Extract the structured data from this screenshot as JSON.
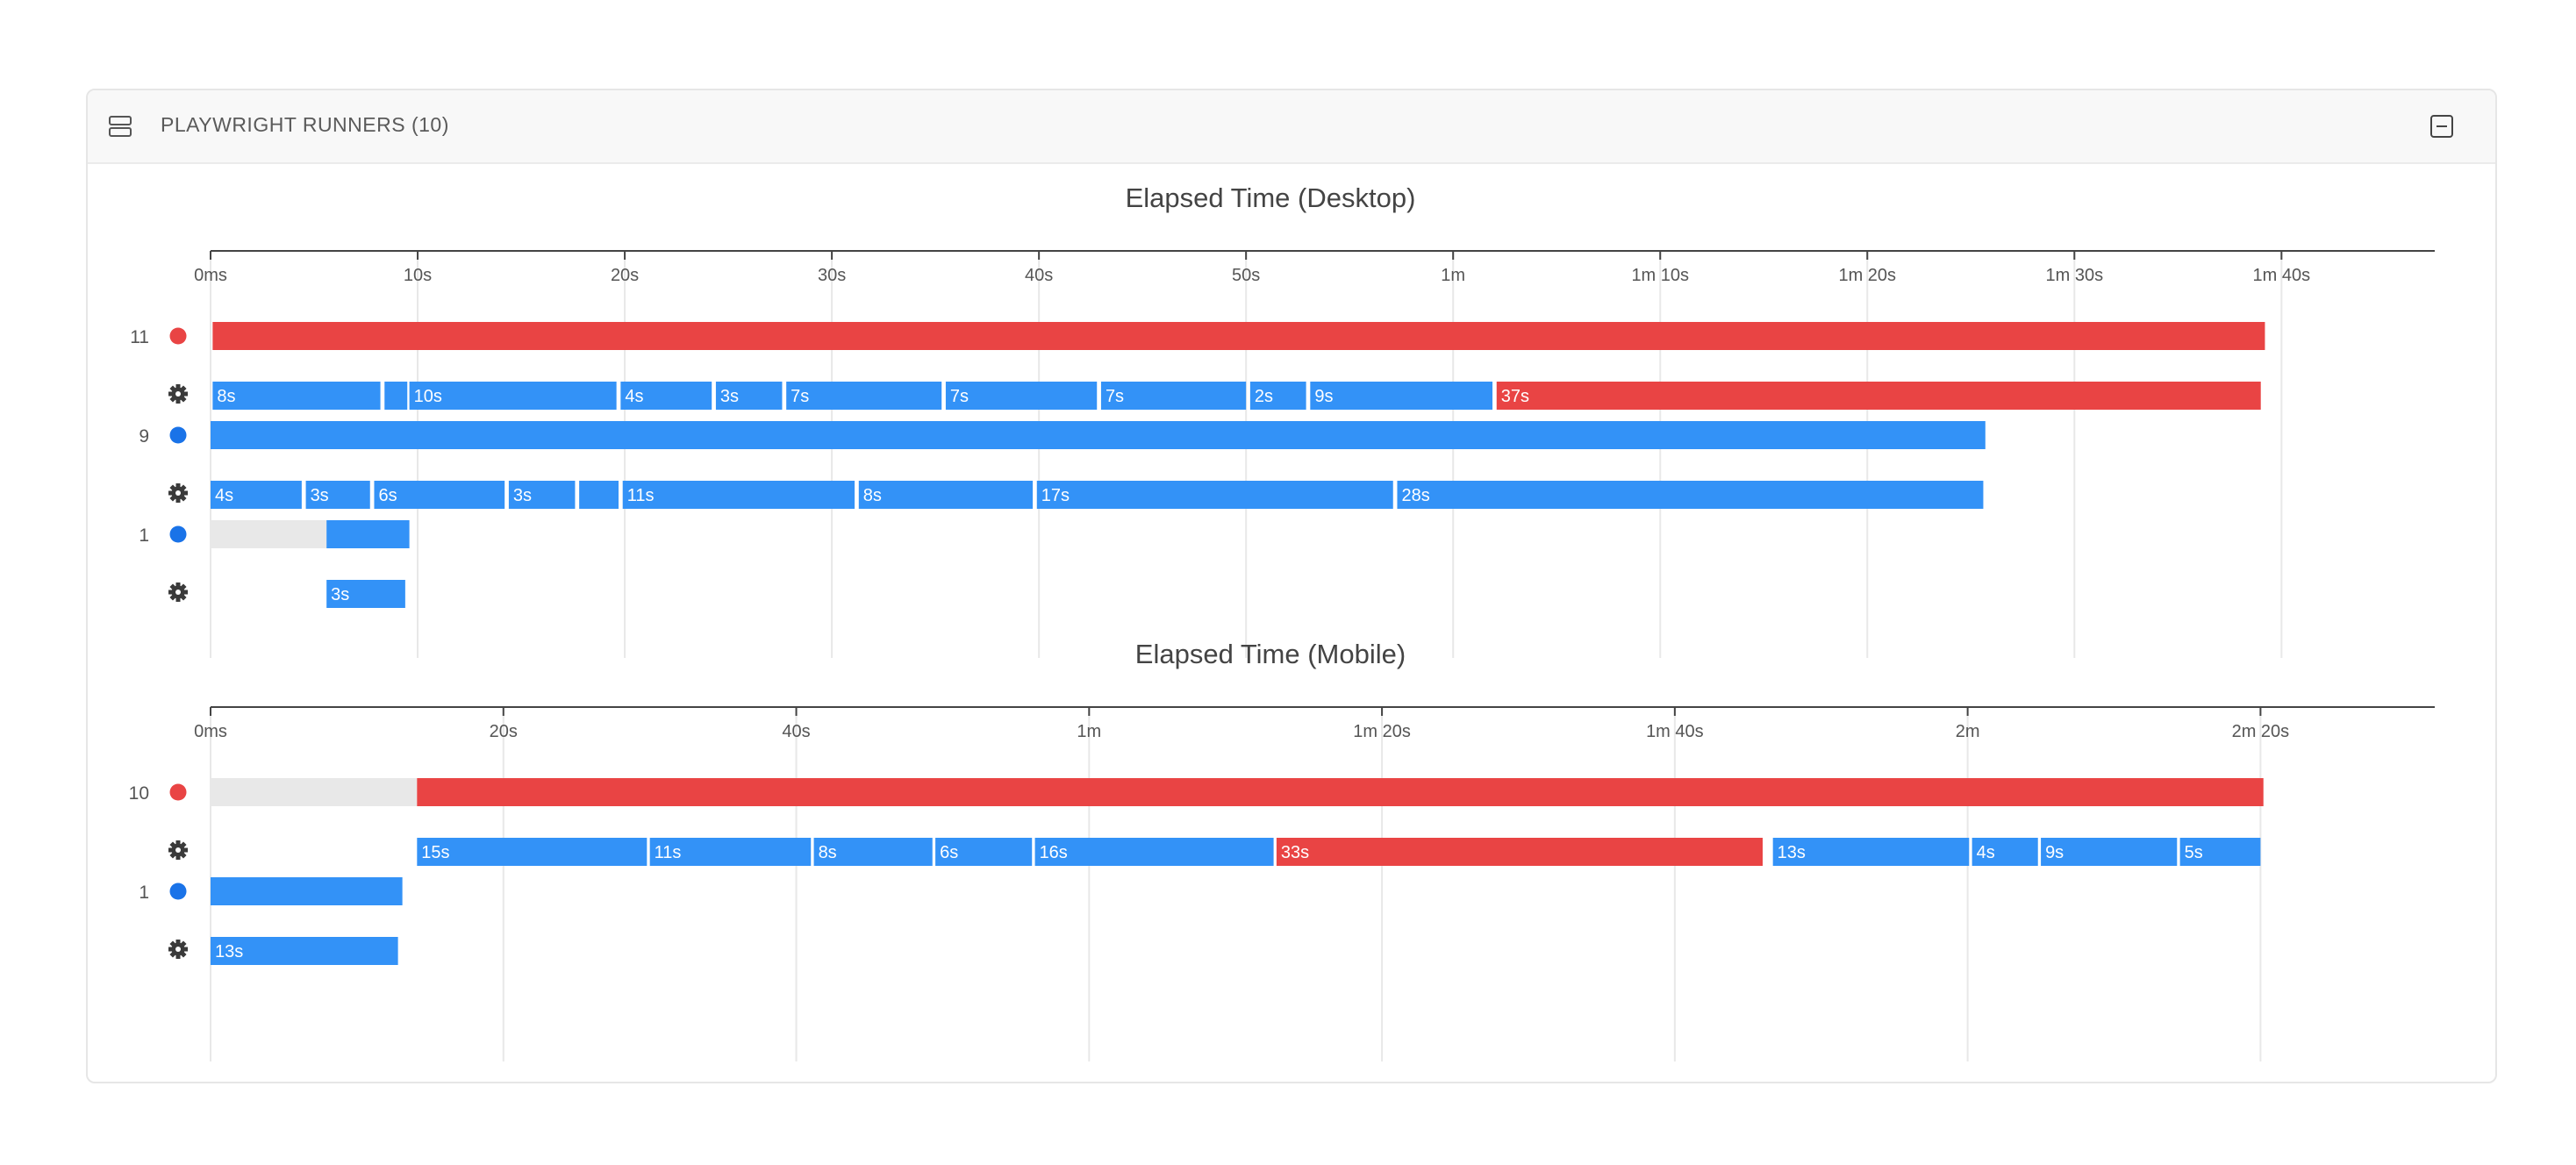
{
  "panel": {
    "title": "PLAYWRIGHT RUNNERS (10)",
    "header_icon": "server-stack-icon",
    "collapse_icon": "collapse-icon"
  },
  "colors": {
    "pass": "#3392f7",
    "fail": "#e94444",
    "idle": "#e8e8e8",
    "status_pass": "#1a73e8",
    "status_fail": "#e94444",
    "axis": "#444444",
    "grid": "#e8e8e8",
    "title": "#444444",
    "label": "#555555"
  },
  "chart_data": [
    {
      "type": "gantt",
      "title": "Elapsed Time (Desktop)",
      "xunit": "seconds",
      "xlim": [
        0,
        107.4
      ],
      "ticks": [
        {
          "value": 0,
          "label": "0ms"
        },
        {
          "value": 10,
          "label": "10s"
        },
        {
          "value": 20,
          "label": "20s"
        },
        {
          "value": 30,
          "label": "30s"
        },
        {
          "value": 40,
          "label": "40s"
        },
        {
          "value": 50,
          "label": "50s"
        },
        {
          "value": 60,
          "label": "1m"
        },
        {
          "value": 70,
          "label": "1m 10s"
        },
        {
          "value": 80,
          "label": "1m 20s"
        },
        {
          "value": 90,
          "label": "1m 30s"
        },
        {
          "value": 100,
          "label": "1m 40s"
        }
      ],
      "runners": [
        {
          "label": "11",
          "status": "fail",
          "total": {
            "start": 0.1,
            "end": 99.2,
            "status": "fail"
          },
          "steps": [
            {
              "start": 0.1,
              "end": 8.2,
              "label": "8s",
              "status": "pass"
            },
            {
              "start": 8.4,
              "end": 9.5,
              "label": "",
              "status": "pass"
            },
            {
              "start": 9.6,
              "end": 19.6,
              "label": "10s",
              "status": "pass"
            },
            {
              "start": 19.8,
              "end": 24.2,
              "label": "4s",
              "status": "pass"
            },
            {
              "start": 24.4,
              "end": 27.6,
              "label": "3s",
              "status": "pass"
            },
            {
              "start": 27.8,
              "end": 35.3,
              "label": "7s",
              "status": "pass"
            },
            {
              "start": 35.5,
              "end": 42.8,
              "label": "7s",
              "status": "pass"
            },
            {
              "start": 43.0,
              "end": 50.0,
              "label": "7s",
              "status": "pass"
            },
            {
              "start": 50.2,
              "end": 52.9,
              "label": "2s",
              "status": "pass"
            },
            {
              "start": 53.1,
              "end": 61.9,
              "label": "9s",
              "status": "pass"
            },
            {
              "start": 62.1,
              "end": 99.0,
              "label": "37s",
              "status": "fail"
            }
          ]
        },
        {
          "label": "9",
          "status": "pass",
          "total": {
            "start": 0,
            "end": 85.7,
            "status": "pass"
          },
          "steps": [
            {
              "start": 0,
              "end": 4.4,
              "label": "4s",
              "status": "pass"
            },
            {
              "start": 4.6,
              "end": 7.7,
              "label": "3s",
              "status": "pass"
            },
            {
              "start": 7.9,
              "end": 14.2,
              "label": "6s",
              "status": "pass"
            },
            {
              "start": 14.4,
              "end": 17.6,
              "label": "3s",
              "status": "pass"
            },
            {
              "start": 17.8,
              "end": 19.7,
              "label": "",
              "status": "pass"
            },
            {
              "start": 19.9,
              "end": 31.1,
              "label": "11s",
              "status": "pass"
            },
            {
              "start": 31.3,
              "end": 39.7,
              "label": "8s",
              "status": "pass"
            },
            {
              "start": 39.9,
              "end": 57.1,
              "label": "17s",
              "status": "pass"
            },
            {
              "start": 57.3,
              "end": 85.6,
              "label": "28s",
              "status": "pass"
            }
          ]
        },
        {
          "label": "1",
          "status": "pass",
          "idle": {
            "start": 0,
            "end": 5.6
          },
          "total": {
            "start": 5.6,
            "end": 9.6,
            "status": "pass"
          },
          "steps": [
            {
              "start": 5.6,
              "end": 9.4,
              "label": "3s",
              "status": "pass"
            }
          ]
        }
      ]
    },
    {
      "type": "gantt",
      "title": "Elapsed Time (Mobile)",
      "xunit": "seconds",
      "xlim": [
        0,
        151.9
      ],
      "ticks": [
        {
          "value": 0,
          "label": "0ms"
        },
        {
          "value": 20,
          "label": "20s"
        },
        {
          "value": 40,
          "label": "40s"
        },
        {
          "value": 60,
          "label": "1m"
        },
        {
          "value": 80,
          "label": "1m 20s"
        },
        {
          "value": 100,
          "label": "1m 40s"
        },
        {
          "value": 120,
          "label": "2m"
        },
        {
          "value": 140,
          "label": "2m 20s"
        }
      ],
      "runners": [
        {
          "label": "10",
          "status": "fail",
          "idle": {
            "start": 0,
            "end": 14.1
          },
          "total": {
            "start": 14.1,
            "end": 140.2,
            "status": "fail"
          },
          "steps": [
            {
              "start": 14.1,
              "end": 29.8,
              "label": "15s",
              "status": "pass"
            },
            {
              "start": 30.0,
              "end": 41.0,
              "label": "11s",
              "status": "pass"
            },
            {
              "start": 41.2,
              "end": 49.3,
              "label": "8s",
              "status": "pass"
            },
            {
              "start": 49.5,
              "end": 56.1,
              "label": "6s",
              "status": "pass"
            },
            {
              "start": 56.3,
              "end": 72.6,
              "label": "16s",
              "status": "pass"
            },
            {
              "start": 72.8,
              "end": 106.0,
              "label": "33s",
              "status": "fail"
            },
            {
              "start": 106.7,
              "end": 120.1,
              "label": "13s",
              "status": "pass"
            },
            {
              "start": 120.3,
              "end": 124.8,
              "label": "4s",
              "status": "pass"
            },
            {
              "start": 125.0,
              "end": 134.3,
              "label": "9s",
              "status": "pass"
            },
            {
              "start": 134.5,
              "end": 140.0,
              "label": "5s",
              "status": "pass"
            }
          ]
        },
        {
          "label": "1",
          "status": "pass",
          "total": {
            "start": 0,
            "end": 13.1,
            "status": "pass"
          },
          "steps": [
            {
              "start": 0,
              "end": 12.8,
              "label": "13s",
              "status": "pass"
            }
          ]
        }
      ]
    }
  ]
}
